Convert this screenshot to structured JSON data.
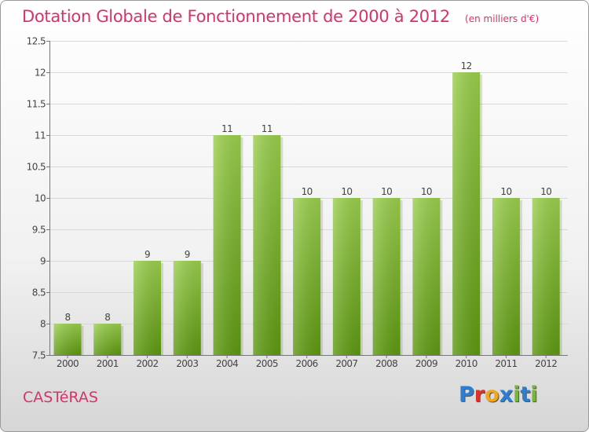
{
  "chart_data": {
    "type": "bar",
    "title": "Dotation Globale de Fonctionnement de 2000 à 2012",
    "subtitle": "(en milliers d'€)",
    "categories": [
      "2000",
      "2001",
      "2002",
      "2003",
      "2004",
      "2005",
      "2006",
      "2007",
      "2008",
      "2009",
      "2010",
      "2011",
      "2012"
    ],
    "values": [
      8,
      8,
      9,
      9,
      11,
      11,
      10,
      10,
      10,
      10,
      12,
      10,
      10
    ],
    "data_labels": [
      "8",
      "8",
      "9",
      "9",
      "11",
      "11",
      "10",
      "10",
      "10",
      "10",
      "12",
      "10",
      "10"
    ],
    "ylim": [
      7.5,
      12.5
    ],
    "yticks": [
      7.5,
      8,
      8.5,
      9,
      9.5,
      10,
      10.5,
      11,
      11.5,
      12,
      12.5
    ],
    "ytick_labels": [
      "7.5",
      "8",
      "8.5",
      "9",
      "9.5",
      "10",
      "10.5",
      "11",
      "11.5",
      "12",
      "12.5"
    ],
    "grid": true,
    "colors": {
      "bar_top": "#9cd04f",
      "bar_bottom": "#5e9a12",
      "grid": "#d8d8d8",
      "title": "#d6336c"
    }
  },
  "footer": {
    "town": "CASTéRAS",
    "brand": "Proxiti",
    "brand_colors": [
      "#2a7fd4",
      "#e0302a",
      "#f3a51b",
      "#2a7fd4",
      "#74b92f",
      "#2a7fd4",
      "#74b92f"
    ]
  }
}
